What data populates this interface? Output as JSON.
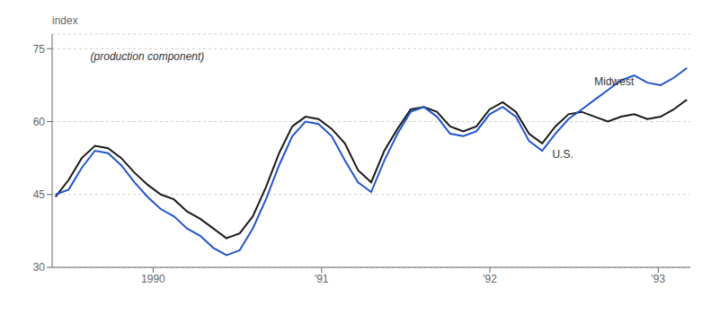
{
  "chart_data": {
    "type": "line",
    "ylabel": "index",
    "subtitle": "(production component)",
    "x": [
      1989.42,
      1989.498125,
      1989.57625,
      1989.654375,
      1989.7325,
      1989.810625,
      1989.88875,
      1989.966875,
      1990.045,
      1990.123125,
      1990.20125,
      1990.279375,
      1990.3575,
      1990.435625,
      1990.51375,
      1990.591875,
      1990.67,
      1990.748125,
      1990.82625,
      1990.904375,
      1990.9825,
      1991.060625,
      1991.13875,
      1991.216875,
      1991.295,
      1991.373125,
      1991.45125,
      1991.529375,
      1991.6075,
      1991.685625,
      1991.76375,
      1991.841875,
      1991.92,
      1991.998125,
      1992.07625,
      1992.154375,
      1992.2325,
      1992.310625,
      1992.38875,
      1992.466875,
      1992.545,
      1992.623125,
      1992.70125,
      1992.779375,
      1992.8575,
      1992.935625,
      1993.01375,
      1993.091875,
      1993.17
    ],
    "series": [
      {
        "name": "U.S.",
        "color": "#1a1a1a",
        "values": [
          44.5,
          48.0,
          52.5,
          55.0,
          54.5,
          52.5,
          49.5,
          47.0,
          45.0,
          44.0,
          41.5,
          40.0,
          38.0,
          36.0,
          37.0,
          40.5,
          46.5,
          53.5,
          59.0,
          61.0,
          60.5,
          58.5,
          55.5,
          50.0,
          47.5,
          54.0,
          58.5,
          62.5,
          63.0,
          62.0,
          59.0,
          58.0,
          59.0,
          62.5,
          64.0,
          62.0,
          57.5,
          55.5,
          59.0,
          61.5,
          62.0,
          61.0,
          60.0,
          61.0,
          61.5,
          60.5,
          61.0,
          62.5,
          64.5
        ]
      },
      {
        "name": "Midwest",
        "color": "#2255cc",
        "values": [
          45.0,
          46.0,
          50.5,
          54.0,
          53.5,
          51.0,
          47.5,
          44.5,
          42.0,
          40.5,
          38.0,
          36.5,
          34.0,
          32.5,
          33.5,
          38.0,
          44.0,
          51.0,
          57.0,
          60.0,
          59.5,
          57.0,
          52.0,
          47.5,
          45.5,
          52.0,
          57.5,
          62.0,
          63.0,
          61.0,
          57.5,
          57.0,
          58.0,
          61.5,
          63.0,
          61.0,
          56.0,
          54.0,
          57.5,
          60.5,
          62.5,
          64.5,
          66.5,
          68.5,
          69.5,
          68.0,
          67.5,
          69.0,
          71.0
        ]
      }
    ],
    "xlim": [
      1989.4,
      1993.19
    ],
    "xticks": [
      1990,
      {
        "value": 1991,
        "label": "'91"
      },
      {
        "value": 1992,
        "label": "'92"
      },
      {
        "value": 1993,
        "label": "'93"
      }
    ],
    "ylim": [
      30,
      78
    ],
    "yticks": [
      30,
      45,
      60,
      75
    ],
    "grid": "y",
    "annotations": [
      {
        "text": "Midwest",
        "x": 1992.62,
        "y": 67.5
      },
      {
        "text": "U.S.",
        "x": 1992.37,
        "y": 52.5
      }
    ]
  }
}
